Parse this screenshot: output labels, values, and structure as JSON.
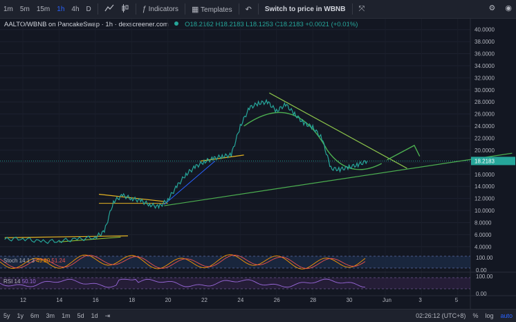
{
  "toolbar": {
    "intervals": [
      "1m",
      "5m",
      "15m",
      "1h",
      "4h",
      "D"
    ],
    "active_interval": "1h",
    "indicators_label": "Indicators",
    "templates_label": "Templates",
    "switch_label": "Switch to price in WBNB"
  },
  "legend": {
    "symbol": "AALTO/WBNB on PancakeSwap · 1h · dexscreener.com",
    "o": "O18.2162",
    "h": "H18.2183",
    "l": "L18.1253",
    "c": "C18.2183",
    "chg": "+0.0021 (+0.01%)"
  },
  "price_axis": {
    "ticks": [
      "40.0000",
      "38.0000",
      "36.0000",
      "34.0000",
      "32.0000",
      "30.0000",
      "28.0000",
      "26.0000",
      "24.0000",
      "22.0000",
      "20.0000",
      "18.0000",
      "16.0000",
      "14.0000",
      "12.0000",
      "10.0000",
      "8.0000",
      "6.0000",
      "4.0000"
    ],
    "last_price": "18.2183"
  },
  "stoch": {
    "label": "Stoch 14 1 3",
    "v1": "49.80",
    "v2": "51.24",
    "ticks": [
      "100.00",
      "0.00"
    ]
  },
  "rsi": {
    "label": "RSI 14",
    "v1": "50.10",
    "ticks": [
      "100.00",
      "0.00"
    ]
  },
  "time_axis": [
    "12",
    "14",
    "16",
    "18",
    "20",
    "22",
    "24",
    "26",
    "28",
    "30",
    "Jun",
    "3",
    "5"
  ],
  "bottom": {
    "ranges": [
      "5y",
      "1y",
      "6m",
      "3m",
      "1m",
      "5d",
      "1d"
    ],
    "time": "02:26:12 (UTC+8)",
    "pct": "%",
    "log": "log",
    "auto": "auto"
  },
  "colors": {
    "bg": "#131722",
    "up": "#26a69a",
    "down": "#ef5350",
    "accent": "#2962ff"
  },
  "chart_data": {
    "type": "line",
    "title": "AALTO/WBNB on PancakeSwap · 1h · dexscreener.com",
    "x": [
      "11",
      "12",
      "13",
      "14",
      "15",
      "16",
      "16.5",
      "17",
      "17.5",
      "18",
      "18.5",
      "19",
      "19.5",
      "20",
      "20.5",
      "21",
      "21.5",
      "22",
      "22.5",
      "23",
      "23.5",
      "24",
      "24.5",
      "25",
      "25.5",
      "26",
      "26.5",
      "27",
      "27.5",
      "28",
      "28.5",
      "29",
      "29.5",
      "30",
      "30.5",
      "31"
    ],
    "values": [
      5.2,
      5.4,
      4.8,
      5.0,
      5.2,
      5.6,
      6.5,
      11.5,
      12.5,
      12.0,
      11.6,
      11.0,
      10.6,
      11.8,
      14.0,
      16.0,
      17.2,
      18.1,
      18.6,
      19.0,
      19.2,
      24.0,
      27.0,
      27.8,
      28.0,
      26.5,
      27.6,
      26.0,
      24.5,
      23.8,
      22.0,
      17.0,
      16.8,
      17.2,
      17.6,
      18.2
    ],
    "ylim": [
      3,
      41
    ]
  }
}
